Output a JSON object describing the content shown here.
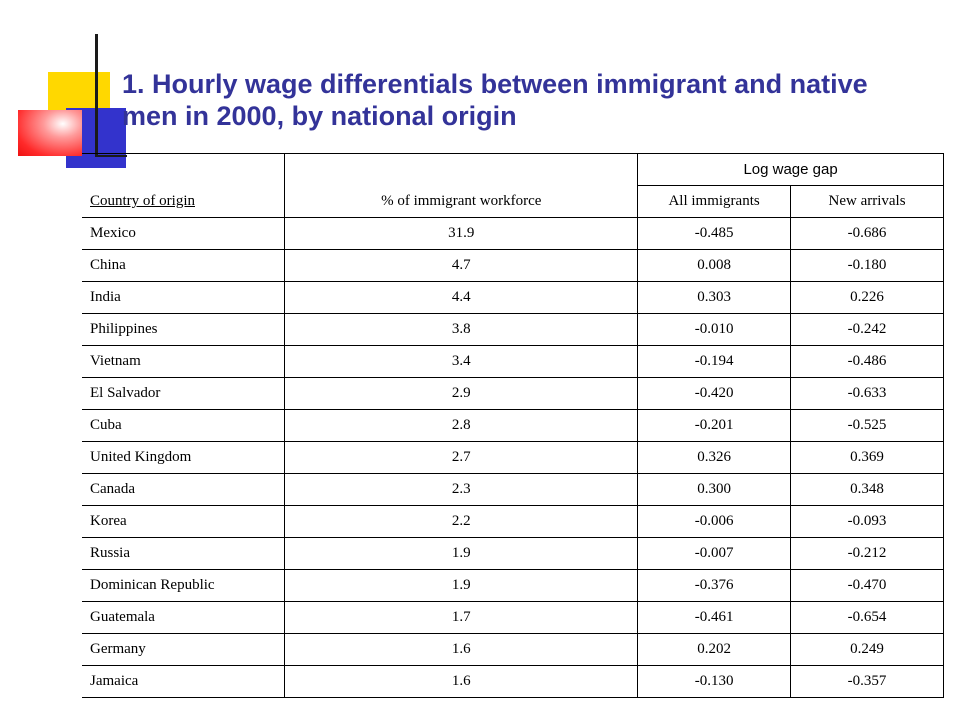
{
  "slide": {
    "title_line1": "1. Hourly wage differentials between immigrant and native",
    "title_line2": "men in 2000, by national origin"
  },
  "table": {
    "headers": {
      "country": "Country of origin",
      "pct": "% of immigrant workforce",
      "group": "Log wage gap",
      "all": "All immigrants",
      "new": "New arrivals"
    },
    "rows": [
      {
        "country": "Mexico",
        "pct": "31.9",
        "all": "-0.485",
        "new": "-0.686"
      },
      {
        "country": "China",
        "pct": "4.7",
        "all": "0.008",
        "new": "-0.180"
      },
      {
        "country": "India",
        "pct": "4.4",
        "all": "0.303",
        "new": "0.226"
      },
      {
        "country": "Philippines",
        "pct": "3.8",
        "all": "-0.010",
        "new": "-0.242"
      },
      {
        "country": "Vietnam",
        "pct": "3.4",
        "all": "-0.194",
        "new": "-0.486"
      },
      {
        "country": "El Salvador",
        "pct": "2.9",
        "all": "-0.420",
        "new": "-0.633"
      },
      {
        "country": "Cuba",
        "pct": "2.8",
        "all": "-0.201",
        "new": "-0.525"
      },
      {
        "country": "United Kingdom",
        "pct": "2.7",
        "all": "0.326",
        "new": "0.369"
      },
      {
        "country": "Canada",
        "pct": "2.3",
        "all": "0.300",
        "new": "0.348"
      },
      {
        "country": "Korea",
        "pct": "2.2",
        "all": "-0.006",
        "new": "-0.093"
      },
      {
        "country": "Russia",
        "pct": "1.9",
        "all": "-0.007",
        "new": "-0.212"
      },
      {
        "country": "Dominican Republic",
        "pct": "1.9",
        "all": "-0.376",
        "new": "-0.470"
      },
      {
        "country": "Guatemala",
        "pct": "1.7",
        "all": "-0.461",
        "new": "-0.654"
      },
      {
        "country": "Germany",
        "pct": "1.6",
        "all": "0.202",
        "new": "0.249"
      },
      {
        "country": "Jamaica",
        "pct": "1.6",
        "all": "-0.130",
        "new": "-0.357"
      }
    ]
  }
}
